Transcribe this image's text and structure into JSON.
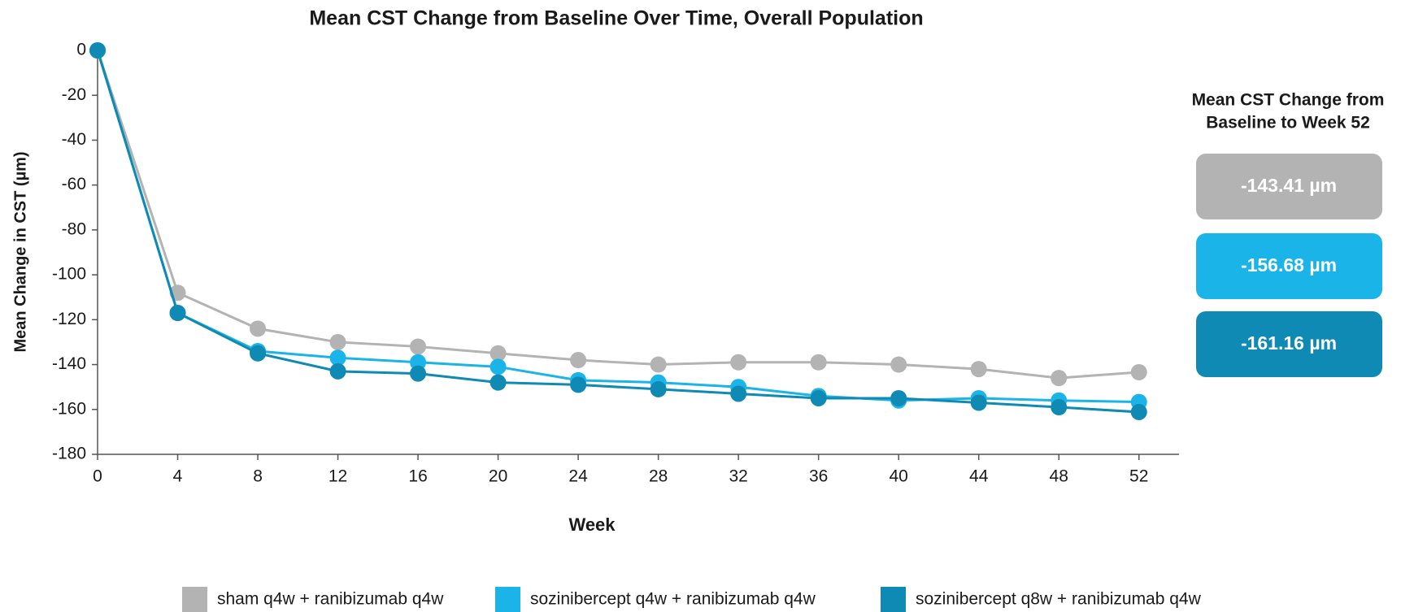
{
  "chart_data": {
    "type": "line",
    "title": "Mean CST Change from Baseline Over Time, Overall Population",
    "x_label": "Week",
    "y_label": "Mean Change in CST (µm)",
    "x": [
      0,
      4,
      8,
      12,
      16,
      20,
      24,
      28,
      32,
      36,
      40,
      44,
      48,
      52
    ],
    "xlim": [
      0,
      54
    ],
    "xticks": [
      0,
      4,
      8,
      12,
      16,
      20,
      24,
      28,
      32,
      36,
      40,
      44,
      48,
      52
    ],
    "ylim": [
      -180,
      0
    ],
    "yticks": [
      -180,
      -160,
      -140,
      -120,
      -100,
      -80,
      -60,
      -40,
      -20,
      0
    ],
    "grid": false,
    "legend": "bottom",
    "series": [
      {
        "name": "sham q4w + ranibizumab q4w",
        "color": "#b3b3b3",
        "values": [
          0,
          -108,
          -124,
          -130,
          -132,
          -135,
          -138,
          -140,
          -139,
          -139,
          -140,
          -142,
          -146,
          -143.41
        ]
      },
      {
        "name": "sozinibercept q4w + ranibizumab q4w",
        "color": "#1ab4e8",
        "values": [
          0,
          -117,
          -134,
          -137,
          -139,
          -141,
          -147,
          -148,
          -150,
          -154,
          -156,
          -155,
          -156,
          -156.68
        ]
      },
      {
        "name": "sozinibercept q8w + ranibizumab q4w",
        "color": "#0f8ab5",
        "values": [
          0,
          -117,
          -135,
          -143,
          -144,
          -148,
          -149,
          -151,
          -153,
          -155,
          -155,
          -157,
          -159,
          -161.16
        ]
      }
    ],
    "summary": {
      "title_lines": [
        "Mean CST Change from",
        "Baseline to Week 52"
      ],
      "labels": [
        "-143.41 µm",
        "-156.68 µm",
        "-161.16 µm"
      ]
    }
  }
}
